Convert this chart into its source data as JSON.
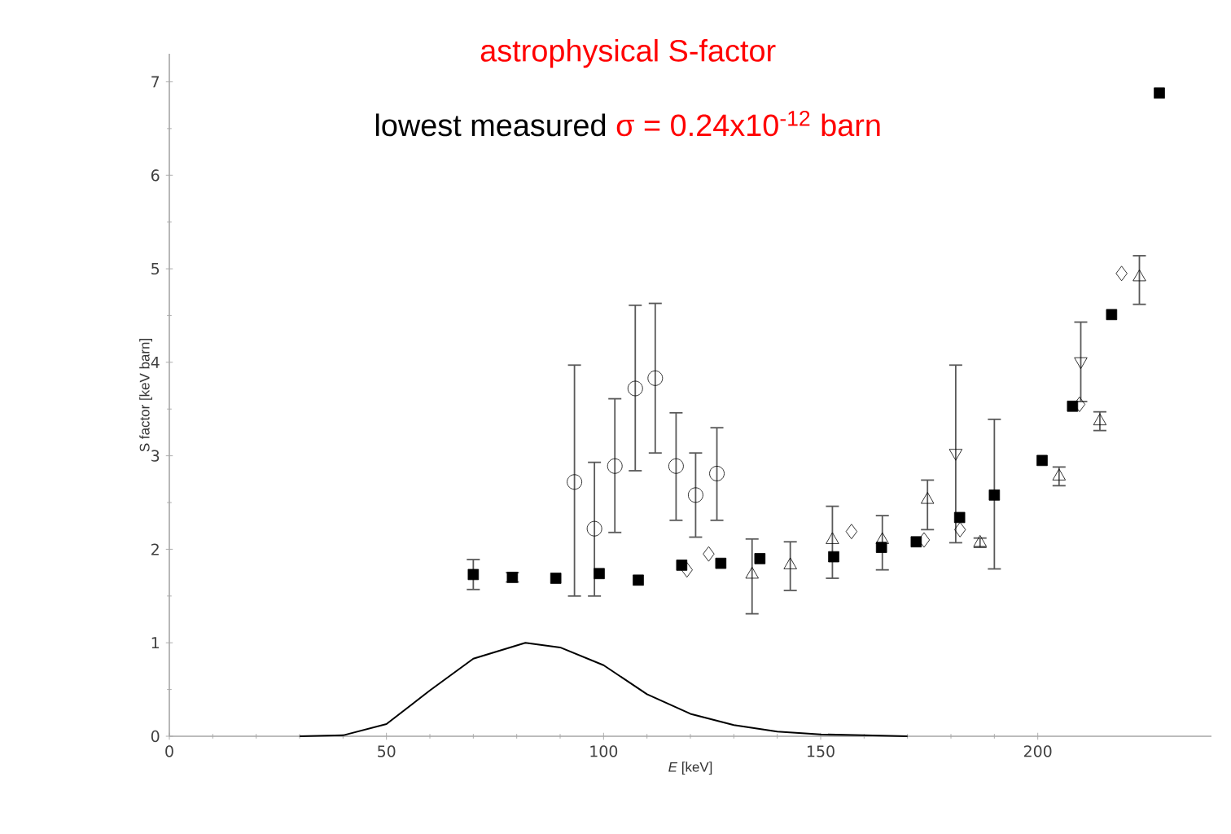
{
  "chart_data": {
    "type": "scatter",
    "title": "astrophysical S-factor",
    "subtitle": "lowest measured",
    "annotations": [
      "σ = 0.24x10$^{-12}$ barn"
    ],
    "xlabel": "*E* [keV]",
    "ylabel": "S factor [keV barn]",
    "xlim": [
      0,
      240
    ],
    "ylim": [
      0,
      7.3
    ],
    "xticks": [
      0,
      50,
      100,
      150,
      200
    ],
    "yticks": [
      0,
      1,
      2,
      3,
      4,
      5,
      6,
      7
    ],
    "grid": false,
    "series": [
      {
        "marker": "square",
        "color": "#000000",
        "x": [
          70,
          79,
          89,
          99,
          108,
          118,
          127,
          136,
          153,
          164,
          172,
          182,
          190,
          201,
          208,
          217,
          228
        ],
        "values": [
          1.73,
          1.7,
          1.69,
          1.74,
          1.67,
          1.83,
          1.85,
          1.9,
          1.92,
          2.02,
          2.08,
          2.34,
          2.58,
          2.95,
          3.53,
          4.51,
          6.88
        ],
        "errors": [
          [
            1.57,
            1.89
          ],
          [
            1.65,
            1.75
          ],
          null,
          null,
          null,
          null,
          null,
          null,
          null,
          null,
          null,
          null,
          [
            1.79,
            3.39
          ],
          null,
          null,
          null,
          null
        ]
      },
      {
        "marker": "circle",
        "color": "#000000",
        "x": [
          93.3,
          97.9,
          102.6,
          107.3,
          111.9,
          116.7,
          121.2,
          126.1
        ],
        "values": [
          2.72,
          2.22,
          2.89,
          3.72,
          3.83,
          2.89,
          2.58,
          2.81
        ],
        "errors": [
          [
            1.5,
            3.97
          ],
          [
            1.5,
            2.93
          ],
          [
            2.18,
            3.61
          ],
          [
            2.84,
            4.61
          ],
          [
            3.03,
            4.63
          ],
          [
            2.31,
            3.46
          ],
          [
            2.13,
            3.03
          ],
          [
            2.31,
            3.3
          ]
        ]
      },
      {
        "marker": "triangle",
        "color": "#000000",
        "x": [
          134.2,
          143,
          152.7,
          164.2,
          174.6,
          186.7,
          204.9,
          214.3,
          223.4
        ],
        "values": [
          1.73,
          1.83,
          2.1,
          2.1,
          2.53,
          2.07,
          2.78,
          3.37,
          4.91
        ],
        "errors": [
          [
            1.31,
            2.11
          ],
          [
            1.56,
            2.08
          ],
          [
            1.69,
            2.46
          ],
          [
            1.78,
            2.36
          ],
          [
            2.21,
            2.74
          ],
          [
            2.02,
            2.12
          ],
          [
            2.68,
            2.88
          ],
          [
            3.27,
            3.47
          ],
          [
            4.62,
            5.14
          ]
        ]
      },
      {
        "marker": "triangle down",
        "color": "#000000",
        "x": [
          181.1,
          209.9
        ],
        "values": [
          3.03,
          4.01
        ],
        "errors": [
          [
            2.07,
            3.97
          ],
          [
            3.58,
            4.43
          ]
        ]
      },
      {
        "marker": "diamond",
        "color": "#000000",
        "x": [
          119.2,
          124.2,
          157.1,
          173.8,
          182.1,
          209.6,
          219.3
        ],
        "values": [
          1.78,
          1.95,
          2.19,
          2.1,
          2.21,
          3.55,
          4.95
        ]
      },
      {
        "type": "line",
        "marker": "none",
        "color": "#000000",
        "x": [
          30,
          40,
          50,
          60,
          70,
          82,
          90,
          100,
          110,
          120,
          130,
          140,
          150,
          160,
          170
        ],
        "values": [
          0,
          0.01,
          0.13,
          0.49,
          0.83,
          1.0,
          0.95,
          0.76,
          0.45,
          0.24,
          0.12,
          0.05,
          0.02,
          0.01,
          0
        ]
      }
    ]
  }
}
